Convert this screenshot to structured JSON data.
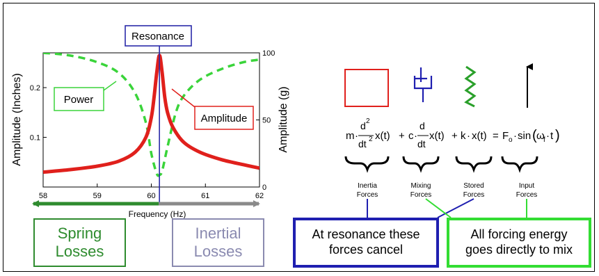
{
  "resonance": {
    "label": "Resonance"
  },
  "chart_data": {
    "type": "line",
    "xlabel": "Frequency (Hz)",
    "ylabel": "Amplitude (Inches)",
    "y2label": "Amplitude (g)",
    "xlim": [
      58,
      62
    ],
    "ylim": [
      0,
      0.27
    ],
    "y2lim": [
      0,
      100
    ],
    "x_ticks": [
      "58",
      "59",
      "60",
      "61",
      "62"
    ],
    "y_ticks": [
      "0.1",
      "0.2"
    ],
    "y2_ticks": [
      "0",
      "50",
      "100"
    ],
    "grid": false,
    "resonance_frequency": 60.15,
    "series": [
      {
        "name": "Amplitude",
        "axis": "left",
        "style": "solid",
        "color": "#e0201c",
        "x": [
          58.0,
          58.5,
          59.0,
          59.4,
          59.7,
          59.9,
          60.0,
          60.05,
          60.1,
          60.15,
          60.2,
          60.25,
          60.3,
          60.4,
          60.6,
          60.9,
          61.3,
          61.7,
          62.0
        ],
        "y": [
          0.03,
          0.035,
          0.042,
          0.052,
          0.07,
          0.1,
          0.14,
          0.18,
          0.23,
          0.265,
          0.23,
          0.18,
          0.15,
          0.12,
          0.09,
          0.07,
          0.055,
          0.045,
          0.038
        ]
      },
      {
        "name": "Power",
        "axis": "right",
        "style": "dashed",
        "color": "#3ad43a",
        "x": [
          58.0,
          58.5,
          59.0,
          59.4,
          59.7,
          59.9,
          60.0,
          60.1,
          60.15,
          60.2,
          60.3,
          60.45,
          60.6,
          60.9,
          61.3,
          61.7,
          62.0
        ],
        "y": [
          100,
          98,
          93,
          85,
          70,
          48,
          25,
          10,
          9,
          12,
          30,
          55,
          68,
          80,
          88,
          93,
          95
        ]
      }
    ]
  },
  "callouts": {
    "power": "Power",
    "amplitude": "Amplitude"
  },
  "arrows": {
    "spring_line1": "Spring",
    "spring_line2": "Losses",
    "inertial_line1": "Inertial",
    "inertial_line2": "Losses"
  },
  "equation": {
    "m": "m",
    "d": "d",
    "sup2": "2",
    "dt": "dt",
    "x_of_t": "x(t)",
    "plus": "+",
    "c": "c",
    "k": "k",
    "equals": "=",
    "F": "F",
    "o_sub": "o",
    "sin_open": "sin",
    "omega": "ω",
    "f_sub": "f",
    "t_close": "t",
    "dot": "·"
  },
  "force_labels": [
    {
      "line1": "Inertia",
      "line2": "Forces"
    },
    {
      "line1": "Mixing",
      "line2": "Forces"
    },
    {
      "line1": "Stored",
      "line2": "Forces"
    },
    {
      "line1": "Input",
      "line2": "Forces"
    }
  ],
  "notes": {
    "cancel_line1": "At resonance these",
    "cancel_line2": "forces cancel",
    "mix_line1": "All forcing energy",
    "mix_line2": "goes directly to mix"
  },
  "colors": {
    "amplitude": "#e0201c",
    "power": "#3ad43a",
    "resonance": "#2a2aa8",
    "spring": "#2e8b2e",
    "inertial": "#8a8ab0",
    "note_blue": "#1f1fb0",
    "note_green": "#33dd33"
  }
}
